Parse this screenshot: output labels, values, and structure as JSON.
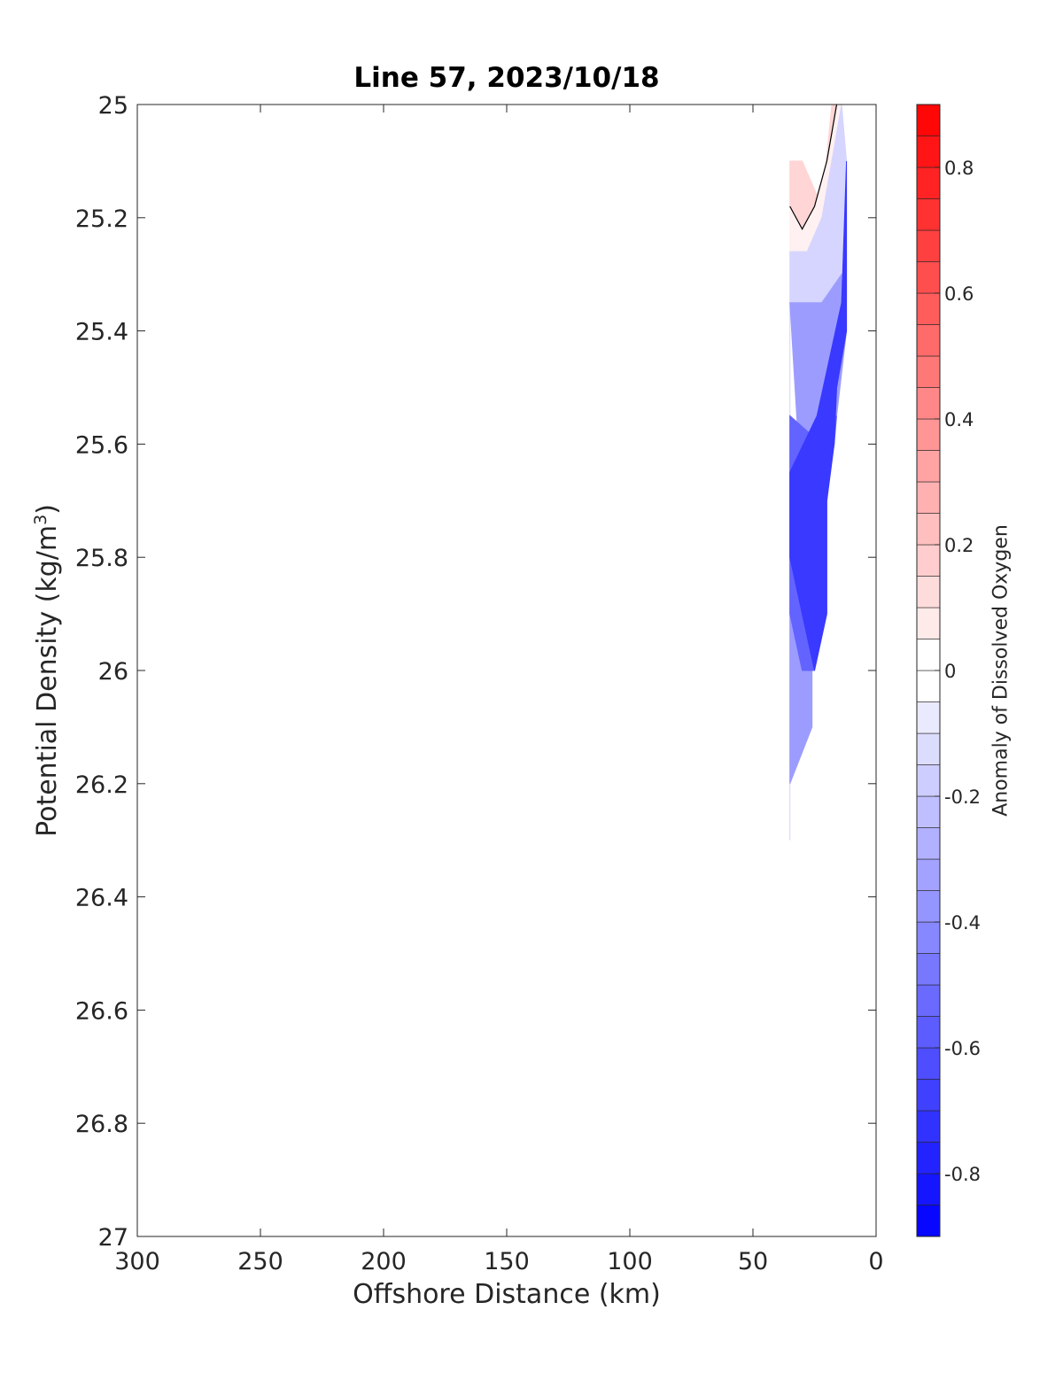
{
  "chart_data": {
    "type": "contour",
    "title": "Line 57, 2023/10/18",
    "xlabel": "Offshore Distance (km)",
    "ylabel_prefix": "Potential Density (kg/m",
    "ylabel_sup": "3",
    "ylabel_suffix": ")",
    "colorbar_label": "Anomaly of Dissolved Oxygen",
    "xlim": [
      300,
      0
    ],
    "x_reversed": true,
    "ylim": [
      25,
      27
    ],
    "y_reversed": true,
    "xticks": [
      300,
      250,
      200,
      150,
      100,
      50,
      0
    ],
    "xtick_labels": [
      "300",
      "250",
      "200",
      "150",
      "100",
      "50",
      "0"
    ],
    "yticks": [
      25,
      25.2,
      25.4,
      25.6,
      25.8,
      26,
      26.2,
      26.4,
      26.6,
      26.8,
      27
    ],
    "ytick_labels": [
      "25",
      "25.2",
      "25.4",
      "25.6",
      "25.8",
      "26",
      "26.2",
      "26.4",
      "26.6",
      "26.8",
      "27"
    ],
    "colorbar": {
      "range": [
        -0.9,
        0.9
      ],
      "step": 0.05,
      "ticks": [
        0.8,
        0.6,
        0.4,
        0.2,
        0,
        -0.2,
        -0.4,
        -0.6,
        -0.8
      ],
      "tick_labels": [
        "0.8",
        "0.6",
        "0.4",
        "0.2",
        "0",
        "-0.2",
        "-0.4",
        "-0.6",
        "-0.8"
      ],
      "colormap": "blue-white-red"
    },
    "grid": false,
    "anomaly_field": [
      {
        "value": 0.15,
        "region": [
          [
            35,
            25.1
          ],
          [
            30,
            25.1
          ],
          [
            22,
            25.18
          ],
          [
            18,
            25.0
          ],
          [
            16,
            25.0
          ],
          [
            20,
            25.1
          ],
          [
            25,
            25.18
          ],
          [
            30,
            25.22
          ],
          [
            35,
            25.18
          ]
        ]
      },
      {
        "value": 0.05,
        "region": [
          [
            35,
            25.18
          ],
          [
            30,
            25.22
          ],
          [
            25,
            25.18
          ],
          [
            20,
            25.1
          ],
          [
            16,
            25.0
          ],
          [
            14,
            25.0
          ],
          [
            18,
            25.1
          ],
          [
            22,
            25.2
          ],
          [
            28,
            25.26
          ],
          [
            35,
            25.26
          ]
        ]
      },
      {
        "value": -0.15,
        "region": [
          [
            35,
            25.26
          ],
          [
            28,
            25.26
          ],
          [
            22,
            25.2
          ],
          [
            18,
            25.1
          ],
          [
            14,
            25.0
          ],
          [
            12,
            25.1
          ],
          [
            14,
            25.3
          ],
          [
            22,
            25.35
          ],
          [
            35,
            25.35
          ],
          [
            35,
            26.3
          ]
        ]
      },
      {
        "value": -0.35,
        "region": [
          [
            35,
            25.35
          ],
          [
            22,
            25.35
          ],
          [
            14,
            25.3
          ],
          [
            12,
            25.4
          ],
          [
            16,
            25.55
          ],
          [
            22,
            25.6
          ],
          [
            35,
            25.55
          ],
          [
            35,
            26.2
          ],
          [
            26,
            26.1
          ],
          [
            26,
            26.0
          ]
        ]
      },
      {
        "value": -0.55,
        "region": [
          [
            35,
            25.55
          ],
          [
            22,
            25.6
          ],
          [
            16,
            25.55
          ],
          [
            17,
            25.6
          ],
          [
            22,
            25.7
          ],
          [
            25,
            26.0
          ],
          [
            30,
            26.0
          ],
          [
            35,
            25.9
          ]
        ]
      },
      {
        "value": -0.7,
        "region": [
          [
            12,
            25.1
          ],
          [
            12,
            25.4
          ],
          [
            16,
            25.5
          ],
          [
            17,
            25.6
          ],
          [
            20,
            25.7
          ],
          [
            20,
            25.9
          ],
          [
            25,
            26.0
          ],
          [
            35,
            25.8
          ],
          [
            35,
            25.65
          ],
          [
            24,
            25.55
          ],
          [
            14,
            25.35
          ]
        ]
      }
    ],
    "zero_contour": {
      "value": 0,
      "x": [
        35,
        30,
        25,
        20,
        18,
        16
      ],
      "y": [
        25.18,
        25.22,
        25.18,
        25.1,
        25.05,
        25.0
      ]
    }
  }
}
